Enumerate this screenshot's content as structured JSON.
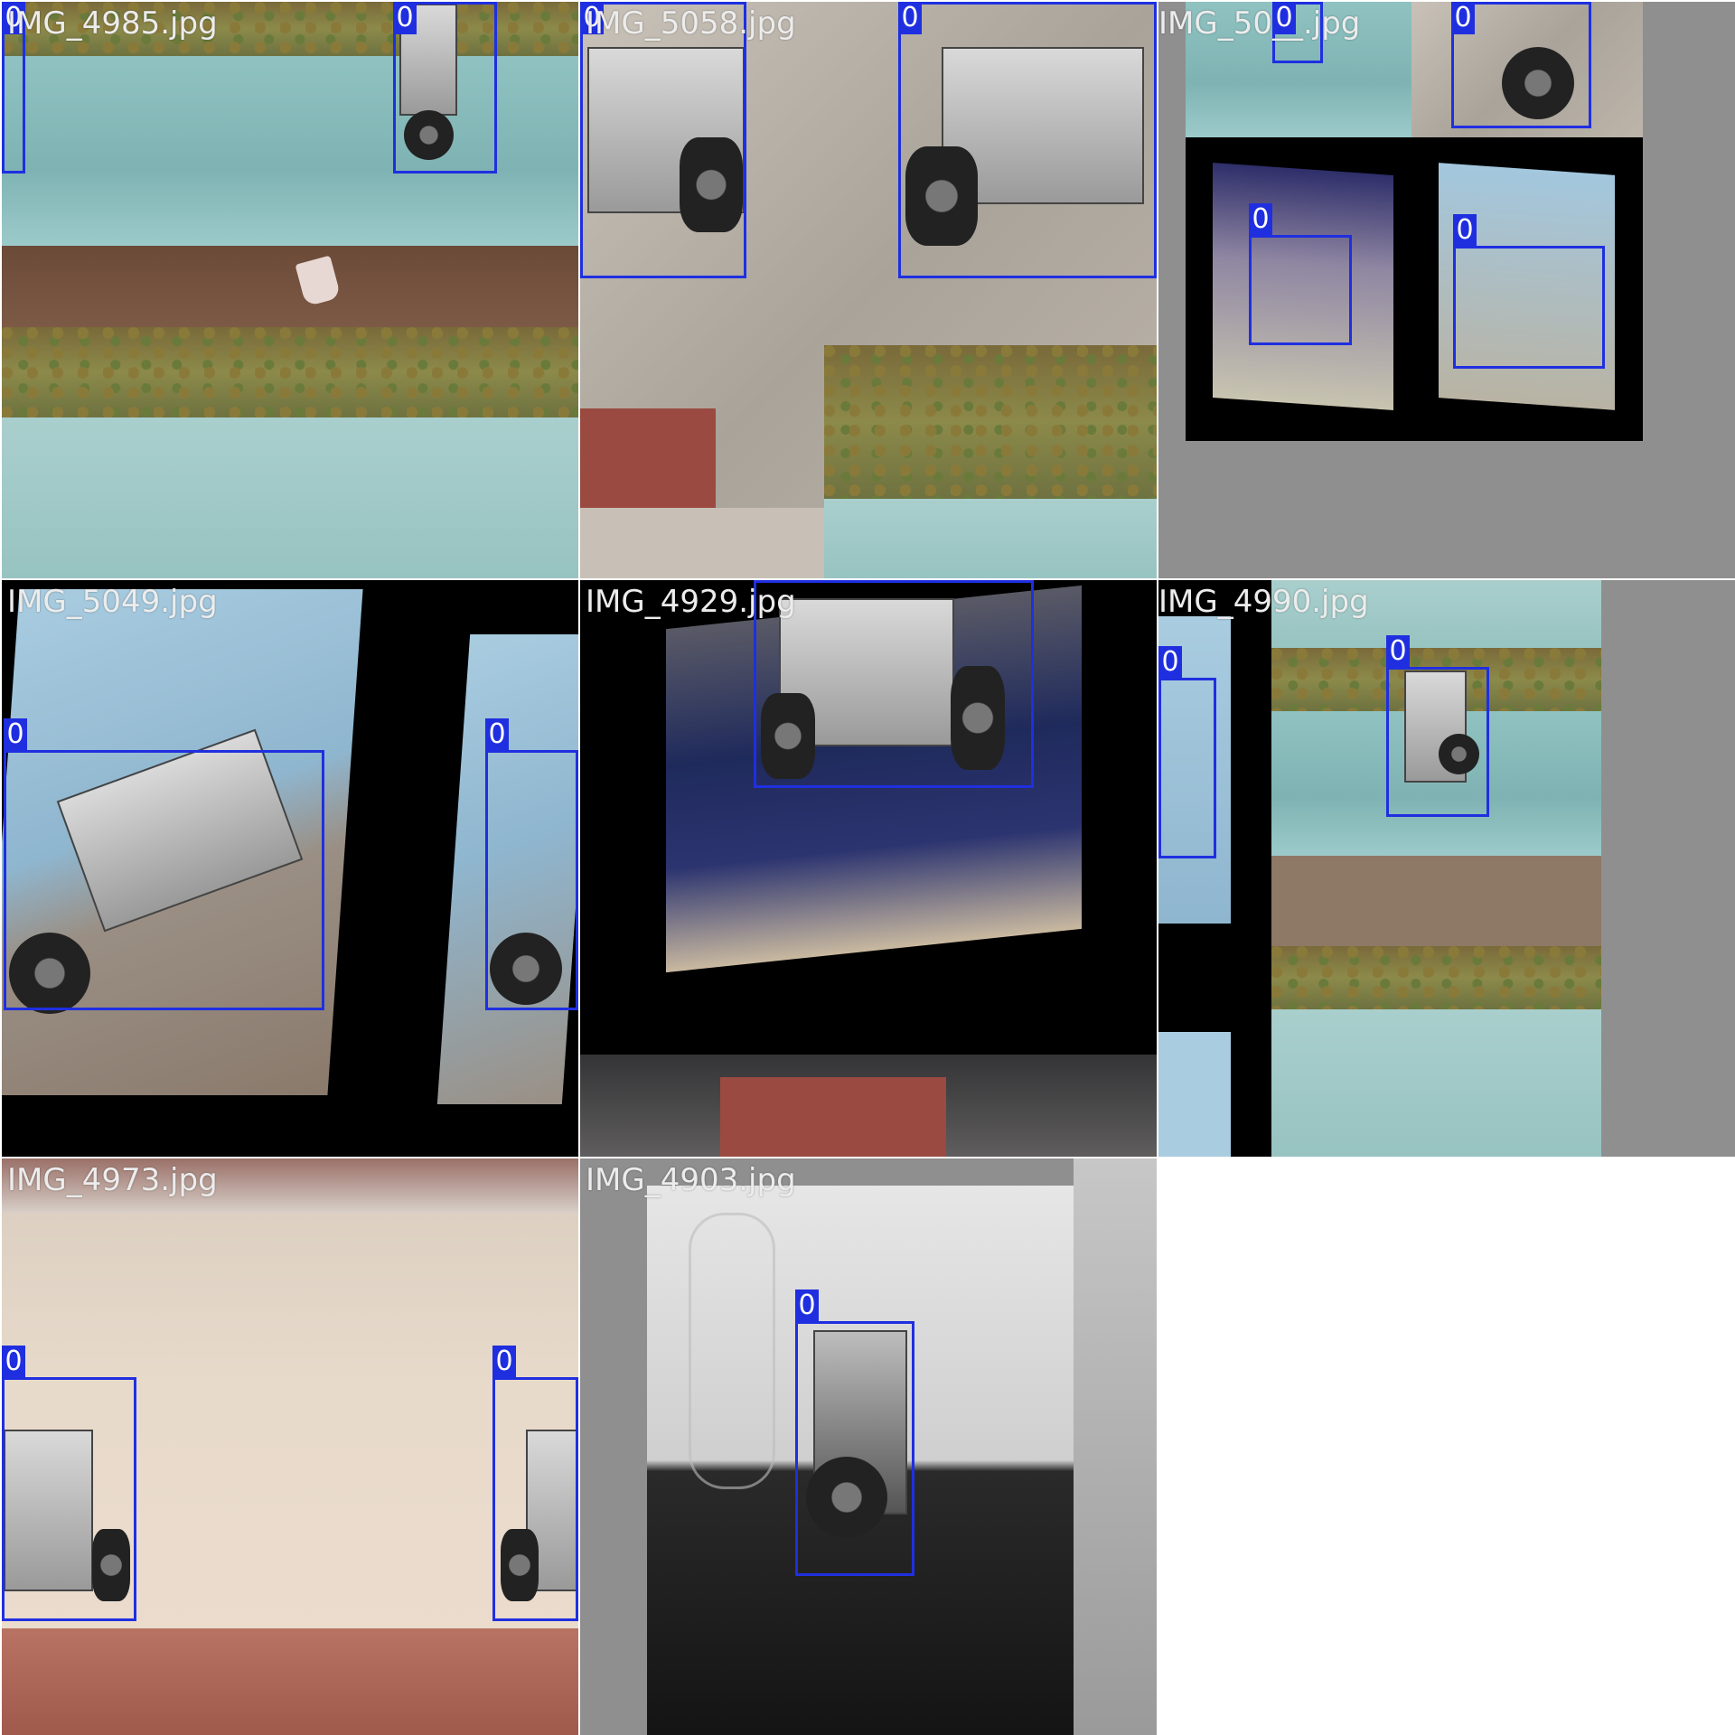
{
  "mosaic": {
    "tiles": [
      {
        "filename": "IMG_4985.jpg",
        "boxes": [
          {
            "cls": "0"
          },
          {
            "cls": "0"
          }
        ]
      },
      {
        "filename": "IMG_5058.jpg",
        "boxes": [
          {
            "cls": "0"
          },
          {
            "cls": "0"
          }
        ]
      },
      {
        "filename": "IMG_50__.jpg",
        "boxes": [
          {
            "cls": "0"
          },
          {
            "cls": "0"
          },
          {
            "cls": "0"
          },
          {
            "cls": "0"
          }
        ]
      },
      {
        "filename": "IMG_5049.jpg",
        "boxes": [
          {
            "cls": "0"
          },
          {
            "cls": "0"
          }
        ]
      },
      {
        "filename": "IMG_4929.jpg",
        "boxes": [
          {
            "cls": "0"
          }
        ]
      },
      {
        "filename": "IMG_4990.jpg",
        "boxes": [
          {
            "cls": "0"
          },
          {
            "cls": "0"
          }
        ]
      },
      {
        "filename": "IMG_4973.jpg",
        "boxes": [
          {
            "cls": "0"
          },
          {
            "cls": "0"
          }
        ]
      },
      {
        "filename": "IMG_4903.jpg",
        "boxes": [
          {
            "cls": "0"
          }
        ]
      }
    ]
  },
  "colors": {
    "box": "#1f2fe0",
    "padding": "#8f8f8f"
  }
}
